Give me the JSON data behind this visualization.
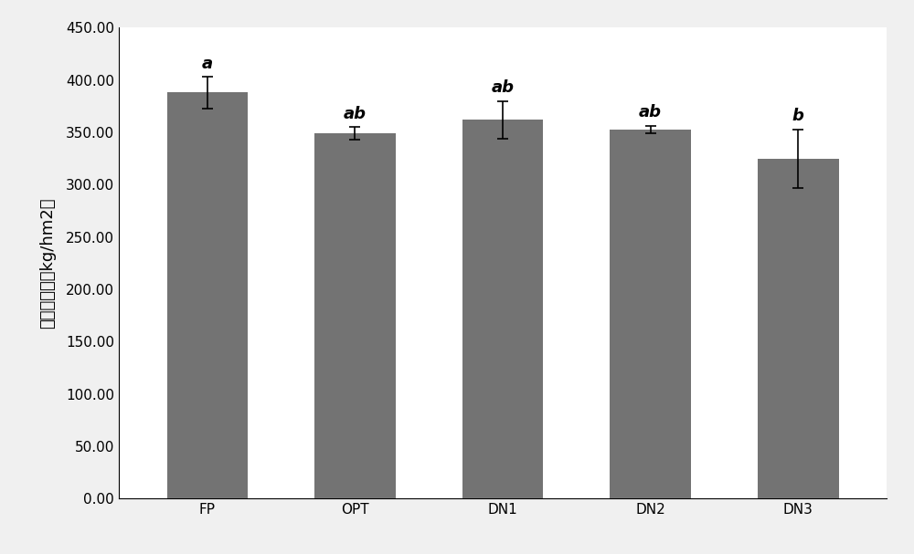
{
  "categories": [
    "FP",
    "OPT",
    "DN1",
    "DN2",
    "DN3"
  ],
  "values": [
    388.0,
    349.0,
    362.0,
    353.0,
    325.0
  ],
  "errors": [
    15.0,
    6.0,
    18.0,
    3.5,
    28.0
  ],
  "labels": [
    "a",
    "ab",
    "ab",
    "ab",
    "b"
  ],
  "bar_color": "#737373",
  "bar_width": 0.55,
  "ylabel": "全氮淋失量（kg/hm2）",
  "ylim": [
    0,
    450
  ],
  "yticks": [
    0,
    50,
    100,
    150,
    200,
    250,
    300,
    350,
    400,
    450
  ],
  "ytick_labels": [
    "0.00",
    "50.00",
    "100.00",
    "150.00",
    "200.00",
    "250.00",
    "300.00",
    "350.00",
    "400.00",
    "450.00"
  ],
  "label_fontsize": 13,
  "tick_fontsize": 11,
  "annotation_fontsize": 13,
  "figure_bg": "#f0f0f0",
  "axes_bg": "#ffffff",
  "error_capsize": 4,
  "error_linewidth": 1.2,
  "error_color": "#000000",
  "border_color": "#aaaaaa"
}
